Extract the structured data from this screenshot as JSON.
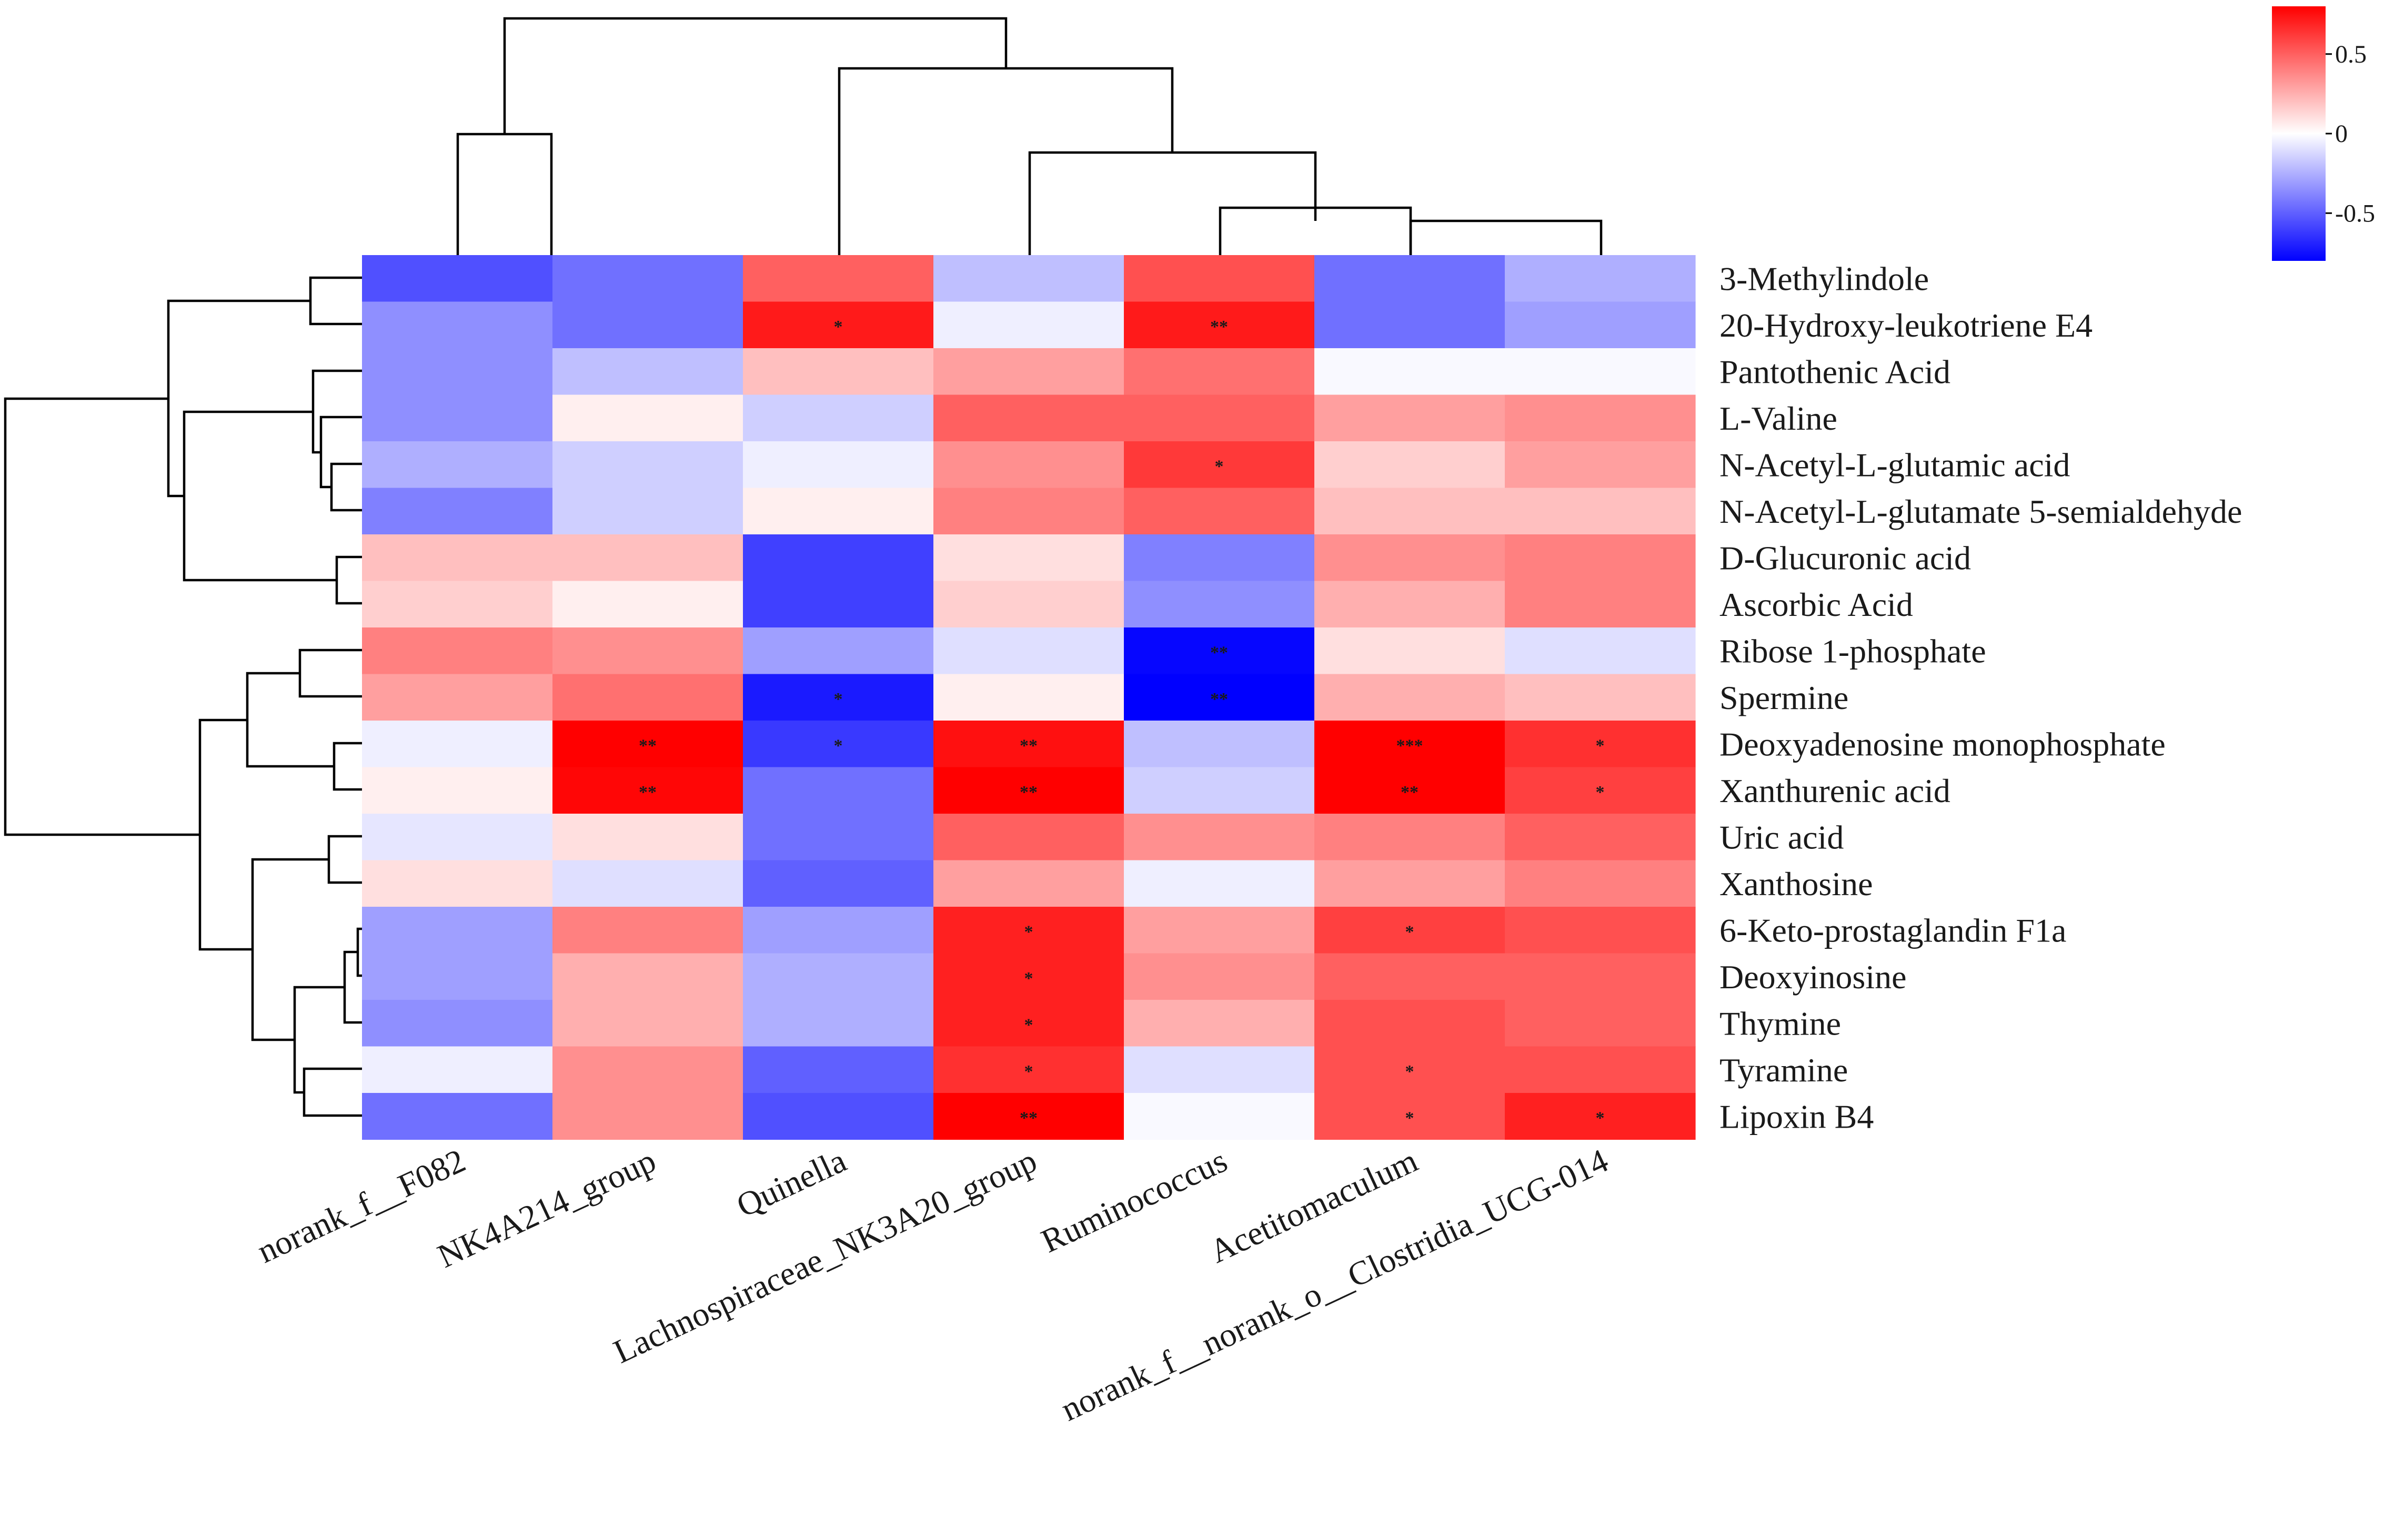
{
  "chart_data": {
    "type": "heatmap",
    "title": "",
    "rows": [
      "3-Methylindole",
      "20-Hydroxy-leukotriene E4",
      "Pantothenic Acid",
      "L-Valine",
      "N-Acetyl-L-glutamic acid",
      "N-Acetyl-L-glutamate 5-semialdehyde",
      "D-Glucuronic acid",
      "Ascorbic Acid",
      "Ribose 1-phosphate",
      "Spermine",
      "Deoxyadenosine monophosphate",
      "Xanthurenic acid",
      "Uric acid",
      "Xanthosine",
      "6-Keto-prostaglandin F1a",
      "Deoxyinosine",
      "Thymine",
      "Tyramine",
      "Lipoxin B4"
    ],
    "columns": [
      "norank_f__F082",
      "NK4A214_group",
      "Quinella",
      "Lachnospiraceae_NK3A20_group",
      "Ruminococcus",
      "Acetitomaculum",
      "norank_f__norank_o__Clostridia_UCG-014"
    ],
    "values": [
      [
        -0.55,
        -0.45,
        0.5,
        -0.2,
        0.55,
        -0.45,
        -0.25
      ],
      [
        -0.35,
        -0.45,
        0.72,
        -0.05,
        0.72,
        -0.45,
        -0.3
      ],
      [
        -0.35,
        -0.2,
        0.2,
        0.3,
        0.45,
        -0.02,
        -0.02
      ],
      [
        -0.35,
        0.05,
        -0.15,
        0.5,
        0.5,
        0.3,
        0.35
      ],
      [
        -0.25,
        -0.15,
        -0.05,
        0.35,
        0.62,
        0.15,
        0.3
      ],
      [
        -0.4,
        -0.15,
        0.05,
        0.4,
        0.5,
        0.2,
        0.2
      ],
      [
        0.2,
        0.2,
        -0.6,
        0.1,
        -0.4,
        0.35,
        0.4
      ],
      [
        0.15,
        0.05,
        -0.6,
        0.15,
        -0.35,
        0.25,
        0.4
      ],
      [
        0.4,
        0.35,
        -0.3,
        -0.1,
        -0.78,
        0.1,
        -0.1
      ],
      [
        0.3,
        0.45,
        -0.72,
        0.05,
        -0.8,
        0.25,
        0.2
      ],
      [
        -0.05,
        0.82,
        -0.62,
        0.75,
        -0.2,
        0.85,
        0.65
      ],
      [
        0.05,
        0.78,
        -0.45,
        0.8,
        -0.15,
        0.82,
        0.6
      ],
      [
        -0.08,
        0.1,
        -0.45,
        0.5,
        0.35,
        0.4,
        0.5
      ],
      [
        0.1,
        -0.1,
        -0.5,
        0.3,
        -0.05,
        0.3,
        0.4
      ],
      [
        -0.3,
        0.4,
        -0.3,
        0.7,
        0.3,
        0.6,
        0.55
      ],
      [
        -0.3,
        0.25,
        -0.25,
        0.7,
        0.35,
        0.5,
        0.5
      ],
      [
        -0.35,
        0.25,
        -0.25,
        0.7,
        0.25,
        0.55,
        0.5
      ],
      [
        -0.05,
        0.35,
        -0.5,
        0.65,
        -0.1,
        0.55,
        0.55
      ],
      [
        -0.45,
        0.35,
        -0.55,
        0.9,
        -0.02,
        0.55,
        0.7
      ]
    ],
    "significance": [
      [
        "",
        "",
        "",
        "",
        "",
        "",
        ""
      ],
      [
        "",
        "",
        "*",
        "",
        "**",
        "",
        ""
      ],
      [
        "",
        "",
        "",
        "",
        "",
        "",
        ""
      ],
      [
        "",
        "",
        "",
        "",
        "",
        "",
        ""
      ],
      [
        "",
        "",
        "",
        "",
        "*",
        "",
        ""
      ],
      [
        "",
        "",
        "",
        "",
        "",
        "",
        ""
      ],
      [
        "",
        "",
        "",
        "",
        "",
        "",
        ""
      ],
      [
        "",
        "",
        "",
        "",
        "",
        "",
        ""
      ],
      [
        "",
        "",
        "",
        "",
        "**",
        "",
        ""
      ],
      [
        "",
        "",
        "*",
        "",
        "**",
        "",
        ""
      ],
      [
        "",
        "**",
        "*",
        "**",
        "",
        "***",
        "*"
      ],
      [
        "",
        "**",
        "",
        "**",
        "",
        "**",
        "*"
      ],
      [
        "",
        "",
        "",
        "",
        "",
        "",
        ""
      ],
      [
        "",
        "",
        "",
        "",
        "",
        "",
        ""
      ],
      [
        "",
        "",
        "",
        "*",
        "",
        "*",
        ""
      ],
      [
        "",
        "",
        "",
        "*",
        "",
        "",
        ""
      ],
      [
        "",
        "",
        "",
        "*",
        "",
        "",
        ""
      ],
      [
        "",
        "",
        "",
        "*",
        "",
        "*",
        ""
      ],
      [
        "",
        "",
        "",
        "**",
        "",
        "*",
        "*"
      ]
    ],
    "color_scale": {
      "min": -0.8,
      "max": 0.8,
      "low_color": "#0000ff",
      "mid_color": "#ffffff",
      "high_color": "#ff0000",
      "ticks": [
        0.5,
        0,
        -0.5
      ],
      "tick_labels": [
        "0.5",
        "0",
        "-0.5"
      ]
    },
    "legend_position": "top-right",
    "dendrograms": [
      "top (columns)",
      "left (rows)"
    ]
  }
}
